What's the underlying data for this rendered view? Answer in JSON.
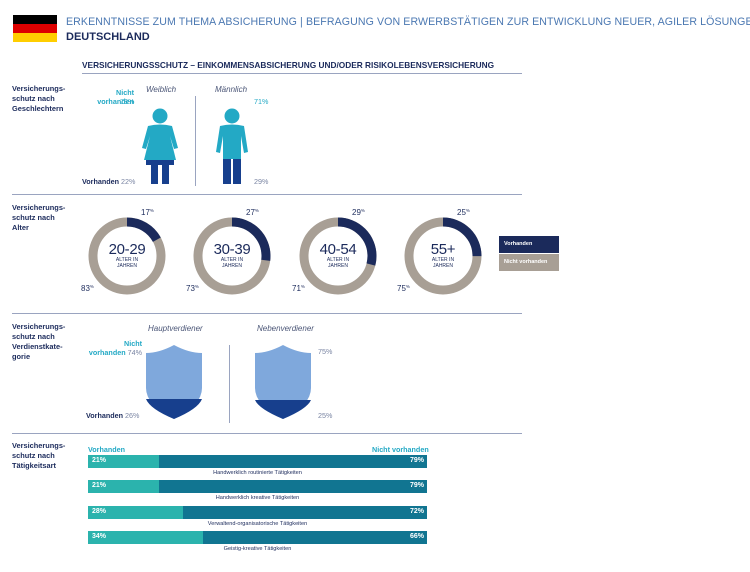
{
  "header": {
    "title": "ERKENNTNISSE ZUM THEMA ABSICHERUNG | BEFRAGUNG VON ERWERBSTÄTIGEN ZUR ENTWICKLUNG NEUER, AGILER LÖSUNGEN",
    "country": "DEUTSCHLAND",
    "flag_colors": [
      "#000000",
      "#dd0000",
      "#ffce00"
    ]
  },
  "section_title": "VERSICHERUNGSSCHUTZ – EINKOMMENSABSICHERUNG UND/ODER RISIKOLEBENSVERSICHERUNG",
  "colors": {
    "navy": "#1b2a5b",
    "taupe": "#a89f95",
    "cyan": "#23a9c5",
    "shield_light": "#7fa8dc",
    "shield_dark": "#173f8d",
    "teal": "#2bb3ad",
    "petrol": "#117591"
  },
  "rows": {
    "gender": {
      "label_lines": [
        "Versicherungs-",
        "schutz nach",
        "Geschlechtern"
      ],
      "female": "Weiblich",
      "male": "Männlich",
      "nicht_label_1": "Nicht",
      "nicht_label_2": "vorhanden",
      "vorhanden_label": "Vorhanden",
      "female_not": "78%",
      "female_yes": "22%",
      "male_not": "71%",
      "male_yes": "29%"
    },
    "age": {
      "label_lines": [
        "Versicherungs-",
        "schutz nach",
        "Alter"
      ],
      "sub_1": "ALTER IN",
      "sub_2": "JAHREN",
      "groups": [
        {
          "range": "20-29",
          "vorhanden": "17",
          "nicht": "83",
          "fraction": 0.17
        },
        {
          "range": "30-39",
          "vorhanden": "27",
          "nicht": "73",
          "fraction": 0.27
        },
        {
          "range": "40-54",
          "vorhanden": "29",
          "nicht": "71",
          "fraction": 0.29
        },
        {
          "range": "55+",
          "vorhanden": "25",
          "nicht": "75",
          "fraction": 0.25
        }
      ],
      "pct_sign": "%",
      "legend_vorhanden": "Vorhanden",
      "legend_nicht": "Nicht vorhanden"
    },
    "earner": {
      "label_lines": [
        "Versicherungs-",
        "schutz nach",
        "Verdienstkate-",
        "gorie"
      ],
      "haupt": "Hauptverdiener",
      "neben": "Nebenverdiener",
      "nicht_label_1": "Nicht",
      "nicht_label_2": "vorhanden",
      "vorhanden_label": "Vorhanden",
      "haupt_not": "74%",
      "haupt_yes": "26%",
      "neben_not": "75%",
      "neben_yes": "25%"
    },
    "activity": {
      "label_lines": [
        "Versicherungs-",
        "schutz nach",
        "Tätigkeitsart"
      ],
      "left_header": "Vorhanden",
      "right_header": "Nicht vorhanden"
    }
  },
  "chart_data": {
    "type": "bar",
    "stacked": true,
    "orientation": "horizontal",
    "categories": [
      "Handwerklich routinierte Tätigkeiten",
      "Handwerklich kreative Tätigkeiten",
      "Verwaltend-organisatorische Tätigkeiten",
      "Geistig-kreative Tätigkeiten"
    ],
    "series": [
      {
        "name": "Vorhanden",
        "values": [
          21,
          21,
          28,
          34
        ],
        "labels": [
          "21%",
          "21%",
          "28%",
          "34%"
        ]
      },
      {
        "name": "Nicht vorhanden",
        "values": [
          79,
          79,
          72,
          66
        ],
        "labels": [
          "79%",
          "79%",
          "72%",
          "66%"
        ]
      }
    ],
    "xlim": [
      0,
      100
    ]
  }
}
